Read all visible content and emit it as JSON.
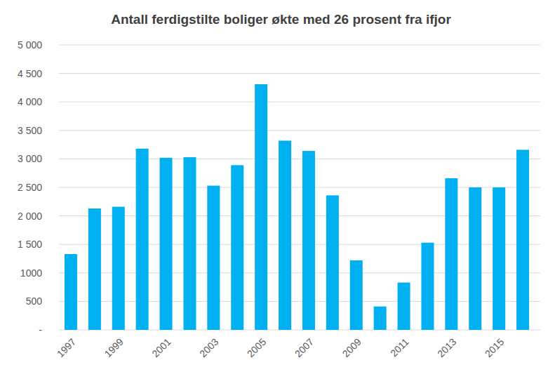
{
  "chart_data": {
    "type": "bar",
    "title": "Antall ferdigstilte boliger økte med 26 prosent fra ifjor",
    "categories": [
      "1997",
      null,
      "1999",
      null,
      "2001",
      null,
      "2003",
      null,
      "2005",
      null,
      "2007",
      null,
      "2009",
      null,
      "2011",
      null,
      "2013",
      null,
      "2015",
      null
    ],
    "values": [
      1330,
      2130,
      2160,
      3180,
      3020,
      3030,
      2530,
      2890,
      4310,
      3320,
      3140,
      2360,
      1220,
      410,
      830,
      1530,
      2660,
      2500,
      2500,
      3160
    ],
    "color": "#00b0f0",
    "ylim": [
      0,
      5000
    ],
    "yticks": [
      {
        "value": 0,
        "label": "-"
      },
      500,
      1000,
      {
        "value": 1500,
        "label": "1 500"
      },
      {
        "value": 2000,
        "label": "2 000"
      },
      {
        "value": 2500,
        "label": "2 500"
      },
      {
        "value": 3000,
        "label": "3 000"
      },
      {
        "value": 3500,
        "label": "3 500"
      },
      {
        "value": 4000,
        "label": "4 000"
      },
      {
        "value": 4500,
        "label": "4 500"
      },
      {
        "value": 5000,
        "label": "5 000"
      }
    ],
    "grid": true
  }
}
